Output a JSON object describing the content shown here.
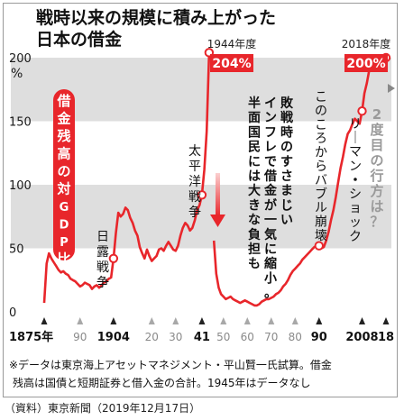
{
  "chart_data": {
    "type": "line",
    "title": [
      "戦時以来の規模に積み上がった",
      "日本の借金"
    ],
    "ylabel": "%",
    "ylim": [
      0,
      210
    ],
    "yticks": [
      0,
      50,
      100,
      150,
      200
    ],
    "xlim": [
      1875,
      2018
    ],
    "xtick_labels": [
      {
        "x": 1875,
        "label": "1875年",
        "marker": "dark"
      },
      {
        "x": 1890,
        "label": "90",
        "marker": "light"
      },
      {
        "x": 1904,
        "label": "1904",
        "marker": "dark"
      },
      {
        "x": 1920,
        "label": "20",
        "marker": "light"
      },
      {
        "x": 1930,
        "label": "30",
        "marker": "light"
      },
      {
        "x": 1941,
        "label": "41",
        "marker": "dark"
      },
      {
        "x": 1950,
        "label": "50",
        "marker": "light"
      },
      {
        "x": 1960,
        "label": "60",
        "marker": "light"
      },
      {
        "x": 1970,
        "label": "70",
        "marker": "light"
      },
      {
        "x": 1980,
        "label": "80",
        "marker": "light"
      },
      {
        "x": 1990,
        "label": "90",
        "marker": "dark"
      },
      {
        "x": 2008,
        "label": "2008",
        "marker": "dark"
      },
      {
        "x": 2018,
        "label": "18",
        "marker": "dark"
      }
    ],
    "series": [
      {
        "color": "#e8262b",
        "segments": [
          [
            [
              1875,
              7
            ],
            [
              1876,
              38
            ],
            [
              1877,
              46
            ],
            [
              1878,
              42
            ],
            [
              1879,
              39
            ],
            [
              1880,
              36
            ],
            [
              1881,
              33
            ],
            [
              1882,
              31
            ],
            [
              1883,
              32
            ],
            [
              1884,
              30
            ],
            [
              1885,
              29
            ],
            [
              1886,
              26
            ],
            [
              1887,
              25
            ],
            [
              1888,
              24
            ],
            [
              1889,
              22
            ],
            [
              1890,
              20
            ],
            [
              1891,
              21
            ],
            [
              1892,
              23
            ],
            [
              1893,
              22
            ],
            [
              1894,
              21
            ],
            [
              1895,
              18
            ],
            [
              1896,
              20
            ],
            [
              1897,
              21
            ],
            [
              1898,
              19
            ],
            [
              1899,
              21
            ],
            [
              1900,
              23
            ],
            [
              1901,
              24
            ],
            [
              1902,
              26
            ],
            [
              1903,
              27
            ],
            [
              1904,
              42
            ],
            [
              1905,
              62
            ],
            [
              1906,
              78
            ],
            [
              1907,
              75
            ],
            [
              1908,
              77
            ],
            [
              1909,
              82
            ],
            [
              1910,
              80
            ],
            [
              1911,
              74
            ],
            [
              1912,
              70
            ],
            [
              1913,
              64
            ],
            [
              1914,
              60
            ],
            [
              1915,
              51
            ],
            [
              1916,
              46
            ],
            [
              1917,
              42
            ],
            [
              1918,
              49
            ],
            [
              1919,
              44
            ],
            [
              1920,
              40
            ],
            [
              1921,
              42
            ],
            [
              1922,
              44
            ],
            [
              1923,
              49
            ],
            [
              1924,
              50
            ],
            [
              1925,
              48
            ],
            [
              1926,
              52
            ],
            [
              1927,
              55
            ],
            [
              1928,
              52
            ],
            [
              1929,
              49
            ],
            [
              1930,
              48
            ],
            [
              1931,
              52
            ],
            [
              1932,
              60
            ],
            [
              1933,
              66
            ],
            [
              1934,
              70
            ],
            [
              1935,
              68
            ],
            [
              1936,
              64
            ],
            [
              1937,
              66
            ],
            [
              1938,
              72
            ],
            [
              1939,
              80
            ],
            [
              1940,
              84
            ],
            [
              1941,
              92
            ],
            [
              1942,
              112
            ],
            [
              1943,
              142
            ],
            [
              1944,
              204
            ]
          ],
          [
            [
              1946,
              56
            ],
            [
              1947,
              30
            ],
            [
              1948,
              19
            ],
            [
              1949,
              14
            ],
            [
              1950,
              12
            ],
            [
              1951,
              10
            ],
            [
              1952,
              11
            ],
            [
              1953,
              12
            ],
            [
              1954,
              10
            ],
            [
              1955,
              9
            ],
            [
              1956,
              8
            ],
            [
              1957,
              7
            ],
            [
              1958,
              8
            ],
            [
              1959,
              9
            ],
            [
              1960,
              8
            ],
            [
              1961,
              7
            ],
            [
              1962,
              6
            ],
            [
              1963,
              5
            ],
            [
              1964,
              5
            ],
            [
              1965,
              6
            ],
            [
              1966,
              8
            ],
            [
              1967,
              9
            ],
            [
              1968,
              10
            ],
            [
              1969,
              10
            ],
            [
              1970,
              11
            ],
            [
              1971,
              12
            ],
            [
              1972,
              14
            ],
            [
              1973,
              15
            ],
            [
              1974,
              17
            ],
            [
              1975,
              20
            ],
            [
              1976,
              22
            ],
            [
              1977,
              25
            ],
            [
              1978,
              29
            ],
            [
              1979,
              32
            ],
            [
              1980,
              34
            ],
            [
              1981,
              36
            ],
            [
              1982,
              38
            ],
            [
              1983,
              41
            ],
            [
              1984,
              43
            ],
            [
              1985,
              45
            ],
            [
              1986,
              47
            ],
            [
              1987,
              49
            ],
            [
              1988,
              51
            ],
            [
              1989,
              52
            ],
            [
              1990,
              52
            ],
            [
              1991,
              50
            ],
            [
              1992,
              51
            ],
            [
              1993,
              56
            ],
            [
              1994,
              63
            ],
            [
              1995,
              72
            ],
            [
              1996,
              80
            ],
            [
              1997,
              90
            ],
            [
              1998,
              102
            ],
            [
              1999,
              113
            ],
            [
              2000,
              122
            ],
            [
              2001,
              132
            ],
            [
              2002,
              140
            ],
            [
              2003,
              143
            ],
            [
              2004,
              148
            ],
            [
              2005,
              152
            ],
            [
              2006,
              150
            ],
            [
              2007,
              148
            ],
            [
              2008,
              158
            ],
            [
              2009,
              172
            ],
            [
              2010,
              180
            ],
            [
              2011,
              190
            ],
            [
              2012,
              196
            ],
            [
              2013,
              199
            ],
            [
              2014,
              201
            ],
            [
              2015,
              200
            ],
            [
              2016,
              202
            ],
            [
              2017,
              201
            ],
            [
              2018,
              200
            ]
          ]
        ],
        "markers": [
          [
            1904,
            42
          ],
          [
            1941,
            92
          ],
          [
            1944,
            204
          ],
          [
            1990,
            52
          ],
          [
            2008,
            158
          ],
          [
            2018,
            200
          ]
        ]
      }
    ],
    "annotations": [
      {
        "id": "peak-1944-year",
        "text": "1944年度"
      },
      {
        "id": "peak-1944-value",
        "text": "204%"
      },
      {
        "id": "peak-2018-year",
        "text": "2018年度"
      },
      {
        "id": "peak-2018-value",
        "text": "200%"
      },
      {
        "id": "series-label",
        "text": "借金残高の対GDP比"
      },
      {
        "id": "event-russo-japanese",
        "text": "日露戦争"
      },
      {
        "id": "event-pacific-war",
        "text": "太平洋戦争"
      },
      {
        "id": "postwar-inflation",
        "lines": [
          "敗戦時のすさまじい",
          "インフレで借金が一気に縮小。",
          "半面国民には大きな負担も"
        ]
      },
      {
        "id": "bubble-collapse",
        "text": "このころからバブル崩壊"
      },
      {
        "id": "lehman-shock",
        "text": "リーマン・ショック"
      },
      {
        "id": "second-default-question",
        "text": "2度目の行方は？"
      }
    ],
    "note": [
      "※データは東京海上アセットマネジメント・平山賢一氏試算。借金",
      "残高は国債と短期証券と借入金の合計。1945年はデータなし"
    ],
    "colors": {
      "line": "#e8262b",
      "band": "#dedede",
      "text": "#1a1a1a",
      "arrow": "#e8262b",
      "label_bg": "#e8262b"
    }
  },
  "source": "（資料）東京新聞（2019年12月17日）"
}
